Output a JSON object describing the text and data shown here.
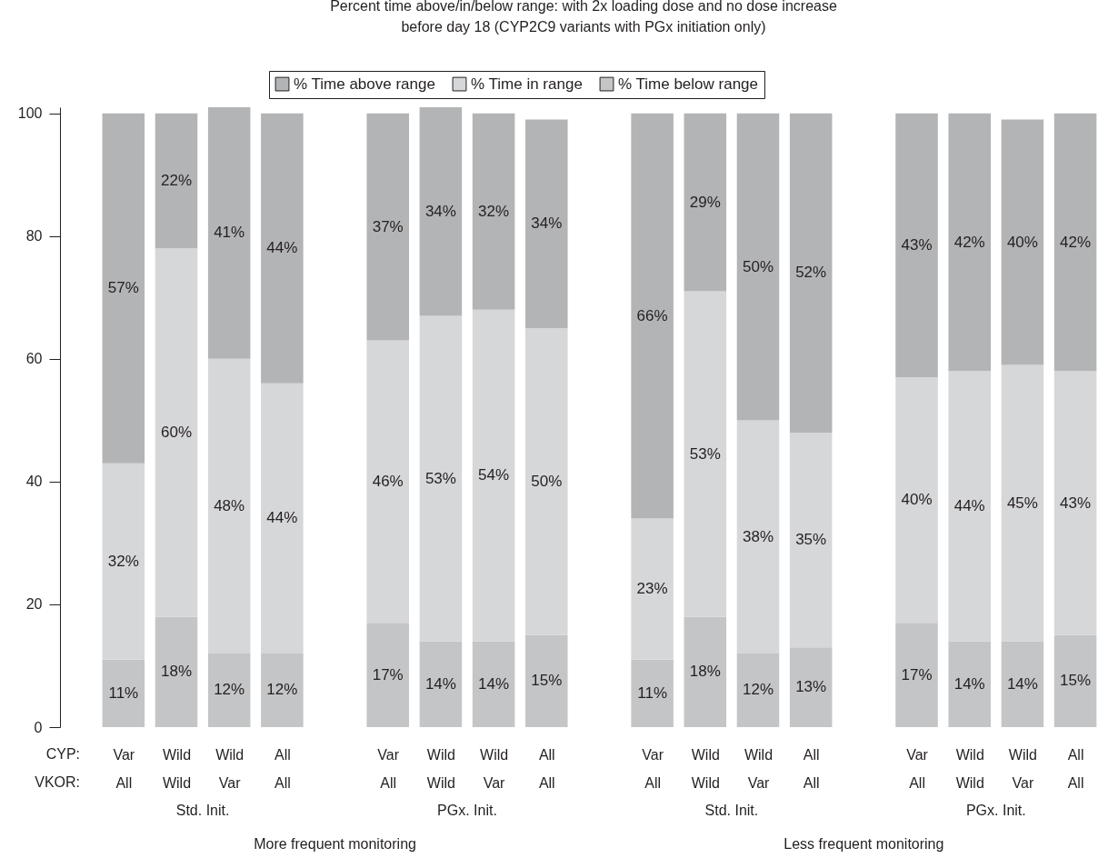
{
  "chart_data": {
    "type": "bar",
    "title": "Percent time above/in/below range: with 2x loading dose and no dose increase\nbefore day 18 (CYP2C9 variants with PGx initiation only)",
    "categories": [
      "Var\nAll",
      "Wild\nWild",
      "Wild\nVar",
      "All\nAll",
      null,
      "Var\nAll",
      "Wild\nWild",
      "Wild\nVar",
      "All\nAll",
      null,
      "Var\nAll",
      "Wild\nWild",
      "Wild\nVar",
      "All\nAll",
      null,
      "Var\nAll",
      "Wild\nWild",
      "Wild\nVar",
      "All\nAll"
    ],
    "stacked": true,
    "series": [
      {
        "name": "% Time below range",
        "color": "#c4c5c7",
        "values": [
          11,
          18,
          12,
          12,
          null,
          17,
          14,
          14,
          15,
          null,
          11,
          18,
          12,
          13,
          null,
          17,
          14,
          14,
          15
        ],
        "value_labels": [
          "11%",
          "18%",
          "12%",
          "12%",
          null,
          "17%",
          "14%",
          "14%",
          "15%",
          null,
          "11%",
          "18%",
          "12%",
          "13%",
          null,
          "17%",
          "14%",
          "14%",
          "15%"
        ]
      },
      {
        "name": "% Time in range",
        "color": "#d6d7d9",
        "values": [
          32,
          60,
          48,
          44,
          null,
          46,
          53,
          54,
          50,
          null,
          23,
          53,
          38,
          35,
          null,
          40,
          44,
          45,
          43
        ],
        "value_labels": [
          "32%",
          "60%",
          "48%",
          "44%",
          null,
          "46%",
          "53%",
          "54%",
          "50%",
          null,
          "23%",
          "53%",
          "38%",
          "35%",
          null,
          "40%",
          "44%",
          "45%",
          "43%"
        ]
      },
      {
        "name": "% Time above range",
        "color": "#b3b4b6",
        "values": [
          57,
          22,
          41,
          44,
          null,
          37,
          34,
          32,
          34,
          null,
          66,
          29,
          50,
          52,
          null,
          43,
          42,
          40,
          42
        ],
        "value_labels": [
          "57%",
          "22%",
          "41%",
          "44%",
          null,
          "37%",
          "34%",
          "32%",
          "34%",
          null,
          "66%",
          "29%",
          "50%",
          "52%",
          null,
          "43%",
          "42%",
          "40%",
          "42%"
        ]
      }
    ],
    "ylim": [
      0,
      101
    ],
    "yticks": [
      0,
      20,
      40,
      60,
      80,
      100
    ],
    "legend": "top",
    "annotations": [
      "CYP:",
      "VKOR:",
      "Std. Init.",
      "PGx. Init.",
      "Std. Init.",
      "PGx. Init.",
      "More frequent monitoring",
      "Less frequent monitoring"
    ]
  }
}
